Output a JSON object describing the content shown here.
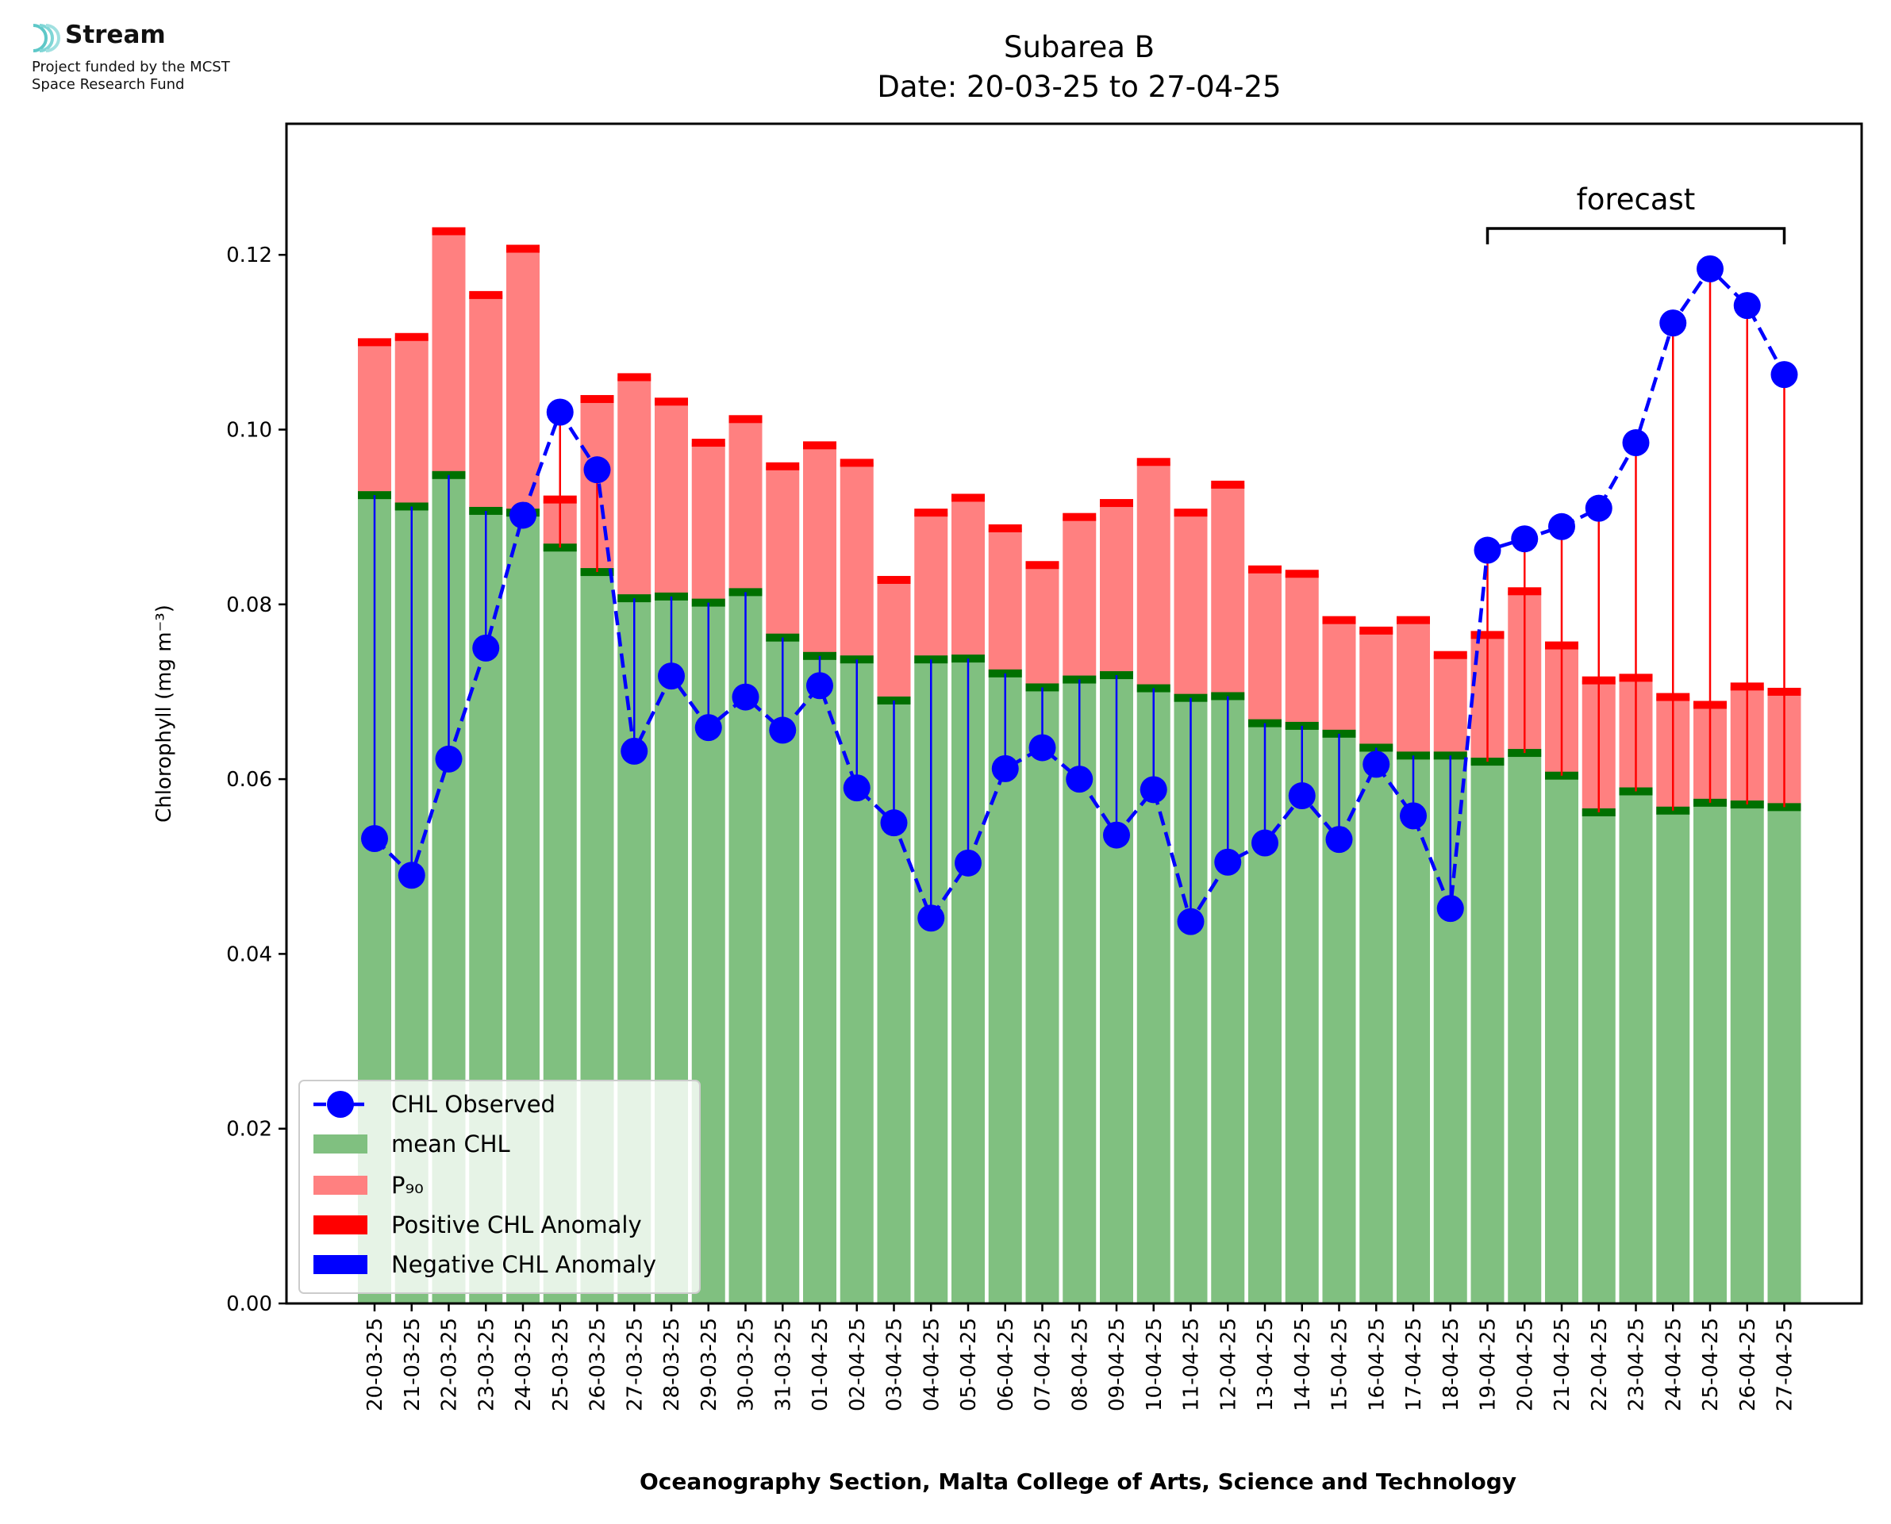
{
  "branding": {
    "name": "Stream",
    "funding_line1": "Project funded by the MCST",
    "funding_line2": "Space Research Fund"
  },
  "chart_data": {
    "type": "bar",
    "title_line1": "Subarea B",
    "title_line2": "Date: 20-03-25 to 27-04-25",
    "xlabel": "Oceanography Section, Malta College of Arts, Science and Technology",
    "ylabel": "Chlorophyll (mg m⁻³)",
    "ylim": [
      0,
      0.135
    ],
    "yticks": [
      "0.00",
      "0.02",
      "0.04",
      "0.06",
      "0.08",
      "0.10",
      "0.12"
    ],
    "grid": false,
    "legend_position": "lower left",
    "annotation": "forecast",
    "forecast_start": "19-04-25",
    "forecast_end": "27-04-25",
    "categories": [
      "20-03-25",
      "21-03-25",
      "22-03-25",
      "23-03-25",
      "24-03-25",
      "25-03-25",
      "26-03-25",
      "27-03-25",
      "28-03-25",
      "29-03-25",
      "30-03-25",
      "31-03-25",
      "01-04-25",
      "02-04-25",
      "03-04-25",
      "04-04-25",
      "05-04-25",
      "06-04-25",
      "07-04-25",
      "08-04-25",
      "09-04-25",
      "10-04-25",
      "11-04-25",
      "12-04-25",
      "13-04-25",
      "14-04-25",
      "15-04-25",
      "16-04-25",
      "17-04-25",
      "18-04-25",
      "19-04-25",
      "20-04-25",
      "21-04-25",
      "22-04-25",
      "23-04-25",
      "24-04-25",
      "25-04-25",
      "26-04-25",
      "27-04-25"
    ],
    "series": [
      {
        "name": "CHL Observed",
        "color": "#0000ff",
        "values": [
          0.0532,
          0.049,
          0.0623,
          0.075,
          0.0902,
          0.102,
          0.0954,
          0.0632,
          0.0718,
          0.0659,
          0.0694,
          0.0656,
          0.0707,
          0.059,
          0.055,
          0.0441,
          0.0504,
          0.0612,
          0.0636,
          0.06,
          0.0536,
          0.0588,
          0.0437,
          0.0505,
          0.0527,
          0.0581,
          0.0531,
          0.0617,
          0.0558,
          0.0452,
          0.0862,
          0.0875,
          0.0889,
          0.091,
          0.0985,
          0.1122,
          0.1184,
          0.1142,
          0.1063
        ]
      },
      {
        "name": "mean CHL",
        "color": "#80c080",
        "values": [
          0.0925,
          0.0912,
          0.0948,
          0.0907,
          0.0905,
          0.0865,
          0.0837,
          0.0807,
          0.0809,
          0.0802,
          0.0814,
          0.0762,
          0.0741,
          0.0737,
          0.069,
          0.0737,
          0.0738,
          0.0721,
          0.0705,
          0.0714,
          0.0719,
          0.0704,
          0.0693,
          0.0695,
          0.0664,
          0.0661,
          0.0652,
          0.0636,
          0.0627,
          0.0627,
          0.062,
          0.063,
          0.0604,
          0.0562,
          0.0586,
          0.0564,
          0.0573,
          0.0571,
          0.0568
        ]
      },
      {
        "name": "P₉₀",
        "color": "#ff8080",
        "values": [
          0.11,
          0.1106,
          0.1227,
          0.1154,
          0.1207,
          0.092,
          0.1035,
          0.106,
          0.1032,
          0.0985,
          0.1012,
          0.0958,
          0.0982,
          0.0962,
          0.0828,
          0.0905,
          0.0922,
          0.0887,
          0.0845,
          0.09,
          0.0916,
          0.0963,
          0.0905,
          0.0937,
          0.084,
          0.0835,
          0.0782,
          0.077,
          0.0782,
          0.0742,
          0.0765,
          0.0815,
          0.0753,
          0.0713,
          0.0716,
          0.0694,
          0.0685,
          0.0706,
          0.07
        ]
      },
      {
        "name": "Positive CHL Anomaly",
        "color": "#ff0000"
      },
      {
        "name": "Negative CHL Anomaly",
        "color": "#0000ff"
      }
    ]
  }
}
